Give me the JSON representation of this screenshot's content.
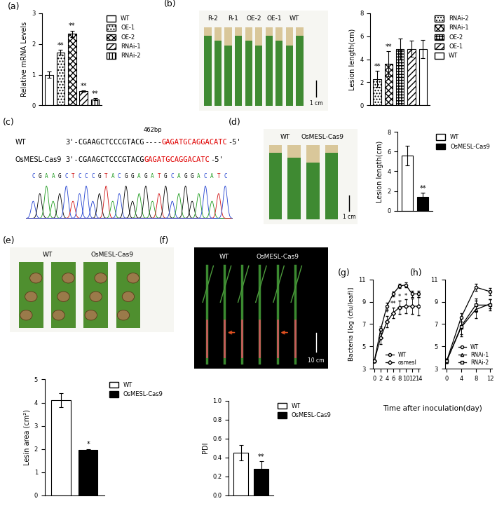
{
  "chart_data": [
    {
      "type": "bar",
      "title": "(a)",
      "ylabel": "Relative mRNA Levels",
      "categories": [
        "WT",
        "OE-1",
        "OE-2",
        "RNAi-1",
        "RNAi-2"
      ],
      "values": [
        1.0,
        1.72,
        2.33,
        0.47,
        0.2
      ],
      "errors": [
        0.1,
        0.08,
        0.1,
        0.02,
        0.04
      ],
      "significance": [
        null,
        "**",
        "**",
        "**",
        "**"
      ],
      "colors": [
        "#ffffff",
        "#ffffff",
        "#ffffff",
        "#ffffff",
        "#ffffff"
      ],
      "ylim": [
        0,
        3
      ],
      "yticks": [
        0,
        1,
        2,
        3
      ],
      "legend": "upper left",
      "tick_labels": "y"
    },
    {
      "type": "image",
      "title": "(b)",
      "labels": [
        "R-2",
        "R-1",
        "OE-2",
        "OE-1",
        "WT"
      ],
      "scale": "1 cm"
    },
    {
      "type": "bar",
      "ylabel": "Lesion length(cm)",
      "categories": [
        "RNAi-2",
        "RNAi-1",
        "OE-2",
        "OE-1",
        "WT"
      ],
      "values": [
        2.3,
        3.6,
        4.9,
        4.9,
        4.9
      ],
      "errors": [
        0.7,
        1.1,
        0.9,
        0.7,
        0.8
      ],
      "significance": [
        "**",
        "**",
        null,
        null,
        null
      ],
      "colors": [
        "#ffffff",
        "#ffffff",
        "#ffffff",
        "#ffffff",
        "#ffffff"
      ],
      "ylim": [
        0,
        8
      ],
      "yticks": [
        0,
        2,
        4,
        6,
        8
      ],
      "legend": "upper left",
      "tick_labels": "y"
    },
    {
      "type": "sequence",
      "title": "(c)",
      "rows": [
        {
          "name": "WT",
          "segments": [
            {
              "text": "3'-CGAAGCTCCCGTACG",
              "color": "#000000"
            },
            {
              "text": "----",
              "color": "#000000",
              "note": "462bp"
            },
            {
              "text": "GAGATGCAGGACATC",
              "color": "#e00000"
            },
            {
              "text": "-5'",
              "color": "#000000"
            }
          ]
        },
        {
          "name": "OsMESL-Cas9",
          "segments": [
            {
              "text": "3'-CGAAGCTCCCGTACG",
              "color": "#000000"
            },
            {
              "text": "GAGATGCAGGACATC",
              "color": "#e00000"
            },
            {
              "text": "-5'",
              "color": "#000000"
            }
          ]
        }
      ],
      "trace": "CGAAGCTCCCGTACGGAGATGCAGGACATC"
    },
    {
      "type": "image",
      "title": "(d)",
      "labels": [
        "WT",
        "OsMESL-Cas9"
      ],
      "scale": "1 cm"
    },
    {
      "type": "bar",
      "ylabel": "Lesion length(cm)",
      "categories": [
        "WT",
        "OsMESL-Cas9"
      ],
      "values": [
        5.6,
        1.4
      ],
      "errors": [
        1.0,
        0.4
      ],
      "significance": [
        null,
        "**"
      ],
      "colors": [
        "#ffffff",
        "#000000"
      ],
      "ylim": [
        0,
        8
      ],
      "yticks": [
        0,
        2,
        4,
        6,
        8
      ],
      "legend": "upper left",
      "tick_labels": "y"
    },
    {
      "type": "image",
      "title": "(e)",
      "labels": [
        "WT",
        "OsMESL-Cas9"
      ]
    },
    {
      "type": "bar",
      "ylabel": "Lesin area (cm²)",
      "categories": [
        "WT",
        "OsMESL-Cas9"
      ],
      "values": [
        4.1,
        1.95
      ],
      "errors": [
        0.3,
        0.05
      ],
      "significance": [
        null,
        "*"
      ],
      "colors": [
        "#ffffff",
        "#000000"
      ],
      "ylim": [
        0,
        5
      ],
      "yticks": [
        0,
        1,
        2,
        3,
        4,
        5
      ],
      "legend": "upper left",
      "tick_labels": "y"
    },
    {
      "type": "image",
      "title": "(f)",
      "labels": [
        "WT",
        "OsMESL-Cas9"
      ],
      "scale": "10 cm"
    },
    {
      "type": "bar",
      "ylabel": "PDI",
      "categories": [
        "WT",
        "OsMESL-Cas9"
      ],
      "values": [
        0.45,
        0.28
      ],
      "errors": [
        0.08,
        0.08
      ],
      "significance": [
        null,
        "**"
      ],
      "colors": [
        "#ffffff",
        "#000000"
      ],
      "ylim": [
        0,
        1.0
      ],
      "yticks": [
        {
          "value": 0,
          "label": "0.0"
        },
        {
          "value": 0.2,
          "label": "0.2"
        },
        {
          "value": 0.4,
          "label": "0.4"
        },
        {
          "value": 0.6,
          "label": "0.6"
        },
        {
          "value": 0.8,
          "label": "0.8"
        },
        {
          "value": 1.0,
          "label": "1.0"
        }
      ],
      "legend": "upper left",
      "tick_labels": "y"
    },
    {
      "type": "line",
      "title": "(g)",
      "ylabel": "Bacteria [log (cfu/leaf)]",
      "xlabel": "Time after inoculation(day)",
      "x": [
        0,
        2,
        4,
        6,
        8,
        10,
        12,
        14
      ],
      "series": [
        {
          "name": "WT",
          "color": "#000000",
          "marker": "circle",
          "values": [
            3.7,
            6.5,
            8.6,
            9.7,
            10.4,
            10.5,
            9.7,
            9.7
          ],
          "errors": [
            0.1,
            0.3,
            0.3,
            0.2,
            0.2,
            0.2,
            0.3,
            0.3
          ]
        },
        {
          "name": "osmesl",
          "color": "#000000",
          "marker": "diamond",
          "values": [
            3.7,
            5.8,
            7.2,
            8.0,
            8.5,
            8.6,
            8.6,
            8.6
          ],
          "errors": [
            0.1,
            0.6,
            0.5,
            0.5,
            0.6,
            0.6,
            0.7,
            0.8
          ],
          "significance": [
            null,
            null,
            "*",
            "**",
            "*",
            "*",
            null,
            null
          ]
        }
      ],
      "xlim": [
        -0.5,
        14.5
      ],
      "xticks": [
        0,
        2,
        4,
        6,
        8,
        10,
        12,
        14
      ],
      "ylim": [
        3,
        11
      ],
      "yticks": [
        3,
        5,
        7,
        9,
        11
      ],
      "legend": "lower right"
    },
    {
      "type": "line",
      "title": "(h)",
      "x": [
        0,
        4,
        8,
        12
      ],
      "series": [
        {
          "name": "WT",
          "color": "#000000",
          "marker": "circle",
          "values": [
            3.7,
            7.6,
            10.3,
            9.9
          ],
          "errors": [
            0.2,
            0.4,
            0.3,
            0.3
          ]
        },
        {
          "name": "RNAi-1",
          "color": "#000000",
          "marker": "triangle",
          "values": [
            3.7,
            6.7,
            8.3,
            8.8
          ],
          "errors": [
            0.2,
            0.8,
            0.8,
            0.4
          ]
        },
        {
          "name": "RNAi-2",
          "color": "#000000",
          "marker": "square",
          "values": [
            3.7,
            6.8,
            8.7,
            8.7
          ],
          "errors": [
            0.2,
            0.7,
            0.6,
            0.5
          ]
        }
      ],
      "xlim": [
        -0.5,
        12.5
      ],
      "xticks": [
        0,
        4,
        8,
        12
      ],
      "ylim": [
        3,
        11
      ],
      "yticks": [
        3,
        5,
        7,
        9,
        11
      ],
      "legend": "lower right"
    }
  ]
}
